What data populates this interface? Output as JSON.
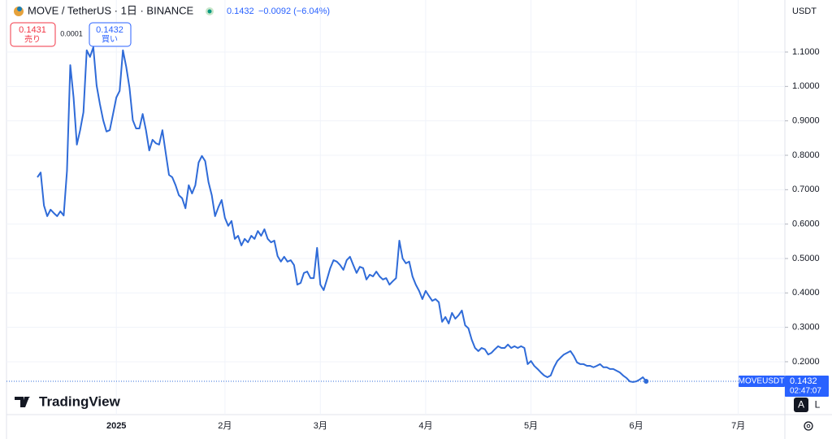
{
  "header": {
    "symbol": "MOVE / TetherUS · 1日 · BINANCE",
    "last": "0.1432",
    "change": "−0.0092 (−6.04%)",
    "sell_price": "0.1431",
    "sell_label": "売り",
    "spread": "0.0001",
    "buy_price": "0.1432",
    "buy_label": "買い",
    "currency": "USDT",
    "symbol_tag": "MOVEUSDT",
    "last_tag": "0.1432",
    "countdown": "02:47:07",
    "brand": "TradingView",
    "auto": "A",
    "log": "L"
  },
  "chart_data": {
    "type": "line",
    "color": "#2f6bd8",
    "grid": true,
    "ylim": [
      0.1,
      1.2
    ],
    "yticks": [
      {
        "value": 0.2,
        "label": "0.2000"
      },
      {
        "value": 0.3,
        "label": "0.3000"
      },
      {
        "value": 0.4,
        "label": "0.4000"
      },
      {
        "value": 0.5,
        "label": "0.5000"
      },
      {
        "value": 0.6,
        "label": "0.6000"
      },
      {
        "value": 0.7,
        "label": "0.7000"
      },
      {
        "value": 0.8,
        "label": "0.8000"
      },
      {
        "value": 0.9,
        "label": "0.9000"
      },
      {
        "value": 1.0,
        "label": "1.0000"
      },
      {
        "value": 1.1,
        "label": "1.1000"
      }
    ],
    "categories": [
      null,
      null,
      null,
      null,
      null,
      null,
      null,
      null,
      null,
      null,
      null,
      null,
      null,
      null,
      null,
      null,
      null,
      null,
      null,
      null,
      null,
      null,
      null,
      null,
      "2025",
      null,
      null,
      null,
      null,
      null,
      null,
      null,
      null,
      null,
      null,
      null,
      null,
      null,
      null,
      null,
      null,
      null,
      null,
      null,
      null,
      null,
      null,
      null,
      null,
      null,
      null,
      null,
      null,
      null,
      null,
      null,
      null,
      "2月",
      null,
      null,
      null,
      null,
      null,
      null,
      null,
      null,
      null,
      null,
      null,
      null,
      null,
      null,
      null,
      null,
      null,
      null,
      null,
      null,
      null,
      null,
      null,
      null,
      null,
      null,
      null,
      null,
      "3月",
      null,
      null,
      null,
      null,
      null,
      null,
      null,
      null,
      null,
      null,
      null,
      null,
      null,
      null,
      null,
      null,
      null,
      null,
      null,
      null,
      null,
      null,
      null,
      null,
      null,
      null,
      null,
      null,
      null,
      null,
      null,
      "4月",
      null,
      null,
      null,
      null,
      null,
      null,
      null,
      null,
      null,
      null,
      null,
      null,
      null,
      null,
      null,
      null,
      null,
      null,
      null,
      null,
      null,
      null,
      null,
      null,
      null,
      null,
      null,
      null,
      null,
      null,
      null,
      "5月",
      null,
      null,
      null,
      null,
      null,
      null,
      null,
      null,
      null,
      null,
      null,
      null,
      null,
      null,
      null,
      null,
      null,
      null,
      null,
      null,
      null,
      null,
      null,
      null,
      null,
      null,
      null,
      null,
      null,
      null,
      null,
      "6月",
      null,
      null,
      null,
      null,
      null,
      null,
      null,
      null,
      null,
      null,
      null,
      null,
      null,
      null,
      null,
      null,
      null,
      null,
      null,
      null,
      null,
      null,
      null,
      null,
      null,
      null,
      null,
      null,
      null,
      null,
      "7月"
    ],
    "values": [
      0.736,
      0.75,
      0.654,
      0.623,
      0.642,
      0.632,
      0.623,
      0.637,
      0.625,
      0.755,
      1.062,
      0.968,
      0.831,
      0.873,
      0.925,
      1.105,
      1.086,
      1.114,
      1.003,
      0.949,
      0.902,
      0.869,
      0.873,
      0.92,
      0.968,
      0.987,
      1.105,
      1.057,
      0.996,
      0.902,
      0.878,
      0.878,
      0.92,
      0.873,
      0.814,
      0.845,
      0.835,
      0.831,
      0.873,
      0.807,
      0.743,
      0.736,
      0.713,
      0.684,
      0.675,
      0.646,
      0.713,
      0.689,
      0.713,
      0.779,
      0.798,
      0.783,
      0.722,
      0.684,
      0.623,
      0.649,
      0.67,
      0.618,
      0.595,
      0.609,
      0.557,
      0.566,
      0.538,
      0.557,
      0.547,
      0.566,
      0.557,
      0.58,
      0.566,
      0.585,
      0.557,
      0.547,
      0.552,
      0.507,
      0.491,
      0.505,
      0.491,
      0.495,
      0.481,
      0.424,
      0.429,
      0.458,
      0.462,
      0.443,
      0.443,
      0.531,
      0.424,
      0.408,
      0.439,
      0.472,
      0.495,
      0.491,
      0.481,
      0.467,
      0.495,
      0.505,
      0.481,
      0.458,
      0.476,
      0.472,
      0.439,
      0.453,
      0.448,
      0.462,
      0.448,
      0.439,
      0.443,
      0.424,
      0.434,
      0.443,
      0.552,
      0.5,
      0.486,
      0.491,
      0.448,
      0.424,
      0.406,
      0.382,
      0.406,
      0.391,
      0.377,
      0.382,
      0.373,
      0.316,
      0.33,
      0.311,
      0.342,
      0.325,
      0.335,
      0.349,
      0.306,
      0.297,
      0.264,
      0.24,
      0.231,
      0.24,
      0.236,
      0.221,
      0.226,
      0.236,
      0.245,
      0.24,
      0.24,
      0.25,
      0.24,
      0.245,
      0.24,
      0.245,
      0.24,
      0.193,
      0.202,
      0.188,
      0.179,
      0.169,
      0.16,
      0.155,
      0.16,
      0.184,
      0.202,
      0.212,
      0.221,
      0.226,
      0.231,
      0.217,
      0.198,
      0.193,
      0.193,
      0.188,
      0.188,
      0.184,
      0.188,
      0.193,
      0.184,
      0.184,
      0.179,
      0.179,
      0.174,
      0.169,
      0.16,
      0.153,
      0.143,
      0.141,
      0.143,
      0.148,
      0.155,
      0.1432,
      null,
      null,
      null,
      null,
      null,
      null,
      null,
      null,
      null,
      null,
      null,
      null,
      null,
      null,
      null,
      null,
      null,
      null,
      null,
      null,
      null,
      null,
      null,
      null,
      null,
      null,
      null,
      null
    ]
  }
}
